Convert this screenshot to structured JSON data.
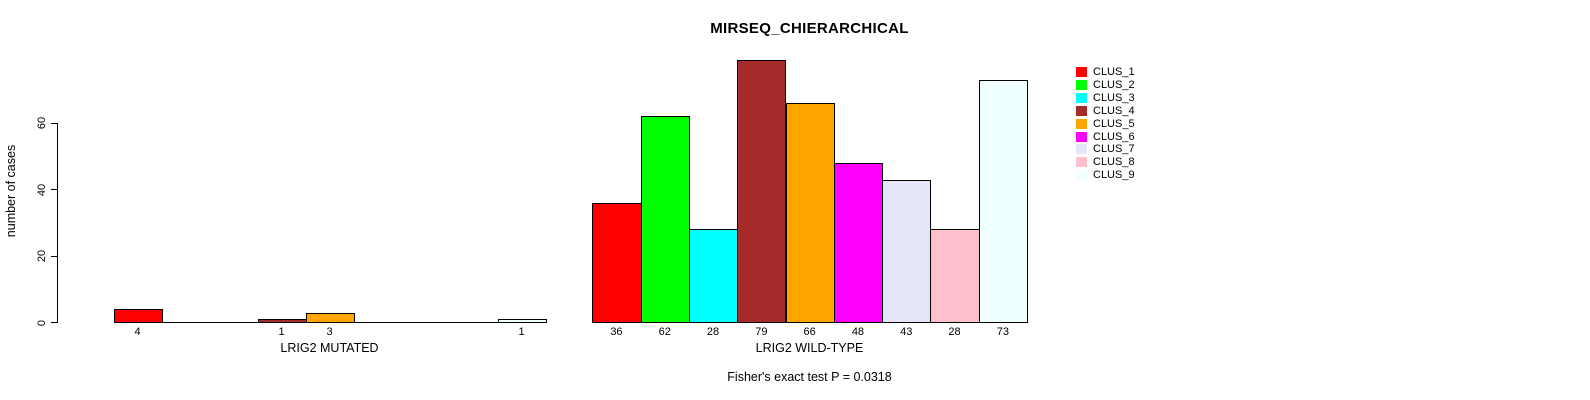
{
  "chart_data": {
    "type": "bar",
    "title": "MIRSEQ_CHIERARCHICAL",
    "ylabel": "number of cases",
    "yticks": [
      0,
      20,
      40,
      60
    ],
    "ylim": [
      0,
      83
    ],
    "grid": false,
    "legend_position": "right",
    "legend": [
      "CLUS_1",
      "CLUS_2",
      "CLUS_3",
      "CLUS_4",
      "CLUS_5",
      "CLUS_6",
      "CLUS_7",
      "CLUS_8",
      "CLUS_9"
    ],
    "colors": [
      "#FF0000",
      "#00FF00",
      "#00FFFF",
      "#A52A2A",
      "#FFA500",
      "#FF00FF",
      "#E6E6FA",
      "#FFC0CB",
      "#F0FFFF"
    ],
    "bar_border_color": "#000000",
    "groups": [
      {
        "label": "LRIG2 MUTATED",
        "values": [
          4,
          0,
          0,
          1,
          3,
          0,
          0,
          0,
          1
        ]
      },
      {
        "label": "LRIG2 WILD-TYPE",
        "values": [
          36,
          62,
          28,
          79,
          66,
          48,
          43,
          28,
          73
        ]
      }
    ],
    "annotation": "Fisher's exact test P = 0.0318"
  }
}
